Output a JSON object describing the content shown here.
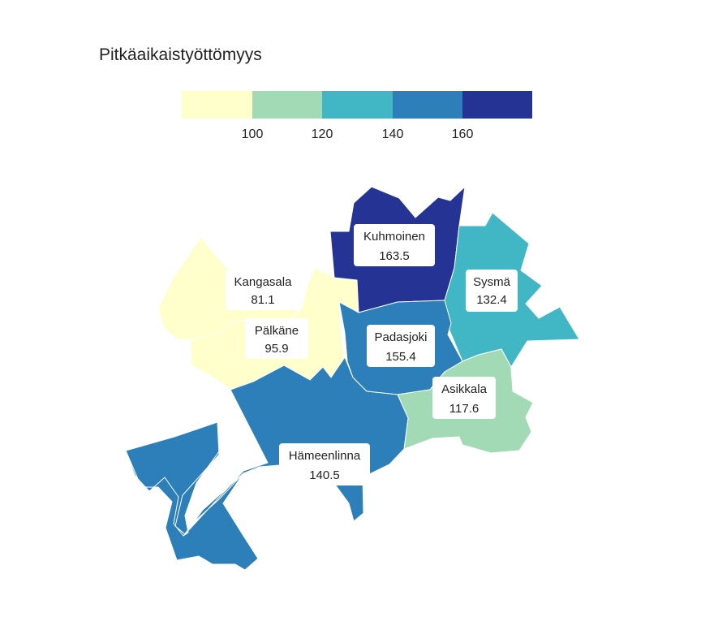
{
  "title": "Pitkäaikaistyöttömyys",
  "legend": {
    "colors": [
      "#ffffcc",
      "#a1dab4",
      "#41b6c4",
      "#2c7fb8",
      "#253494"
    ],
    "ticks": [
      "100",
      "120",
      "140",
      "160"
    ]
  },
  "regions": [
    {
      "name": "Kangasala",
      "value": "81.1",
      "color": "#ffffcc"
    },
    {
      "name": "Pälkäne",
      "value": "95.9",
      "color": "#ffffcc"
    },
    {
      "name": "Kuhmoinen",
      "value": "163.5",
      "color": "#253494"
    },
    {
      "name": "Sysmä",
      "value": "132.4",
      "color": "#41b6c4"
    },
    {
      "name": "Padasjoki",
      "value": "155.4",
      "color": "#2c7fb8"
    },
    {
      "name": "Asikkala",
      "value": "117.6",
      "color": "#a1dab4"
    },
    {
      "name": "Hämeenlinna",
      "value": "140.5",
      "color": "#2c7fb8"
    }
  ]
}
